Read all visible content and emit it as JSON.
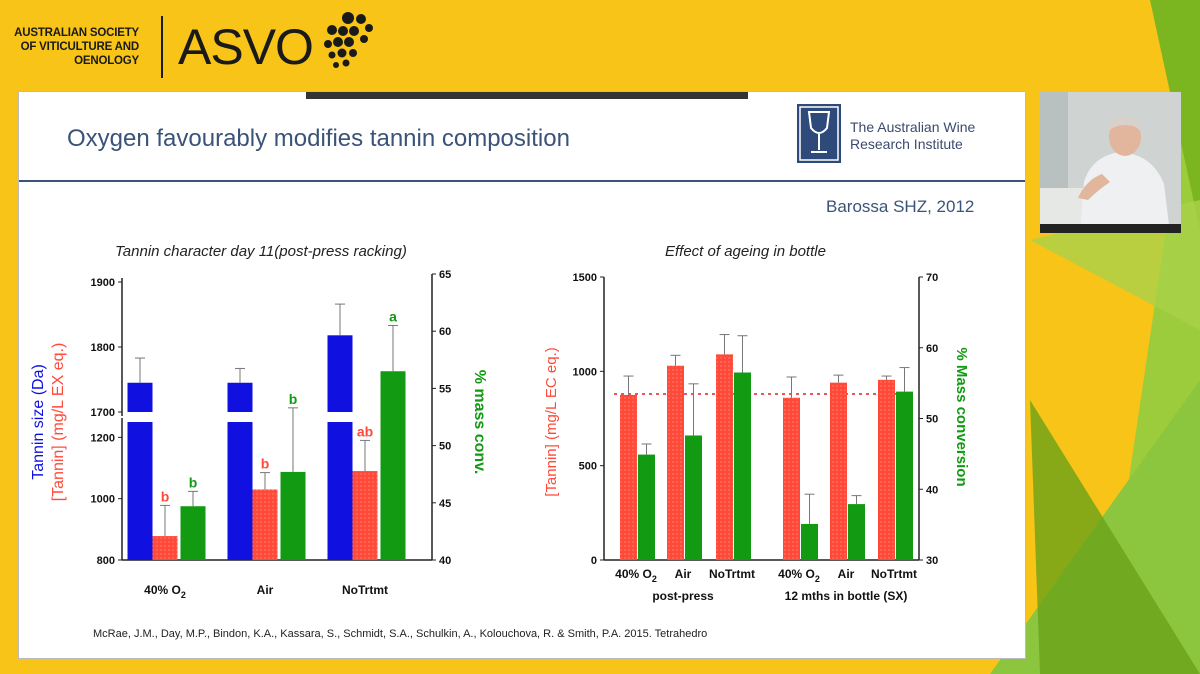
{
  "header": {
    "org_line1": "AUSTRALIAN SOCIETY",
    "org_line2": "OF VITICULTURE AND",
    "org_line3": "OENOLOGY",
    "logo_text": "ASVO",
    "logo_icon": "grape-bunch-icon"
  },
  "slide": {
    "title": "Oxygen favourably modifies tannin composition",
    "awri_line1": "The Australian Wine",
    "awri_line2": "Research Institute",
    "awri_icon": "wine-glass-logo-icon",
    "subtitle": "Barossa SHZ, 2012",
    "citation": "McRae, J.M., Day, M.P., Bindon, K.A., Kassara, S., Schmidt, S.A., Schulkin, A., Kolouchova, R. & Smith, P.A. 2015. Tetrahedro"
  },
  "colors": {
    "background": "#f7c417",
    "accent_green": "#7bb51f",
    "title_blue": "#3b5378",
    "bar_blue": "#1010e0",
    "bar_red": "#ff4a3a",
    "bar_green": "#129a12"
  },
  "chart_data": [
    {
      "type": "bar",
      "title": "Tannin character day 11(post-press racking)",
      "categories": [
        "40% O2",
        "Air",
        "NoTrtmt"
      ],
      "ylabel_left_1": "Tannin size (Da)",
      "ylabel_left_2": "[Tannin] (mg/L EX eq.)",
      "ylabel_right": "% mass conv.",
      "axis_size_upper": {
        "ylim": [
          1700,
          1900
        ],
        "ticks": [
          1700,
          1800,
          1900
        ]
      },
      "axis_tannin_lower": {
        "ylim": [
          800,
          1250
        ],
        "ticks": [
          800,
          1000,
          1200
        ]
      },
      "axis_right": {
        "ylim": [
          40,
          65
        ],
        "ticks": [
          40,
          45,
          50,
          55,
          60,
          65
        ]
      },
      "series": [
        {
          "name": "Tannin size (Da)",
          "color": "#1010e0",
          "values": [
            1745,
            1745,
            1818
          ],
          "errors": [
            38,
            22,
            48
          ],
          "letters": [
            "",
            "",
            ""
          ]
        },
        {
          "name": "[Tannin] (mg/L EX eq.)",
          "color": "#ff4a3a",
          "values": [
            878,
            1030,
            1090
          ],
          "errors": [
            100,
            55,
            100
          ],
          "letters": [
            "b",
            "b",
            "ab"
          ]
        },
        {
          "name": "% mass conv.",
          "color": "#129a12",
          "values": [
            44.7,
            47.7,
            56.5
          ],
          "errors": [
            1.3,
            5.6,
            4.0
          ],
          "letters": [
            "b",
            "b",
            "a"
          ]
        }
      ]
    },
    {
      "type": "bar",
      "title": "Effect of ageing in bottle",
      "categories": [
        "40% O2",
        "Air",
        "NoTrtmt",
        "40% O2",
        "Air",
        "NoTrtmt"
      ],
      "groups": [
        "post-press",
        "12 mths in bottle (SX)"
      ],
      "ylabel_left": "[Tannin] (mg/L EC eq.)",
      "ylabel_right": "% Mass conversion",
      "ylim_left": [
        0,
        1500
      ],
      "ticks_left": [
        0,
        500,
        1000,
        1500
      ],
      "ylim_right": [
        30,
        70
      ],
      "ticks_right": [
        30,
        40,
        50,
        60,
        70
      ],
      "reference_line": 880,
      "series": [
        {
          "name": "[Tannin] (mg/L EC eq.)",
          "color": "#ff4a3a",
          "values": [
            875,
            1030,
            1090,
            860,
            940,
            955
          ],
          "errors": [
            100,
            55,
            105,
            110,
            40,
            20
          ]
        },
        {
          "name": "% Mass conversion",
          "color": "#129a12",
          "values": [
            44.9,
            47.6,
            56.5,
            35.1,
            37.9,
            53.8
          ],
          "errors": [
            1.5,
            7.3,
            5.2,
            4.2,
            1.2,
            3.4
          ]
        }
      ]
    }
  ]
}
